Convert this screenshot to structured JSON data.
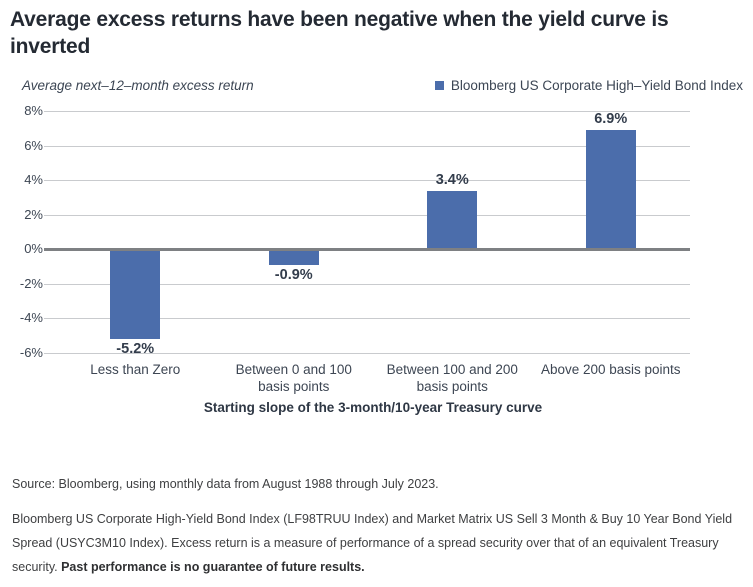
{
  "header": {
    "title": "Average excess returns have been negative when the yield curve is inverted"
  },
  "chart": {
    "axis_note": "Average next–12–month excess return",
    "legend": {
      "label": "Bloomberg US Corporate High–Yield Bond Index",
      "color": "#4b6dab"
    }
  },
  "chart_data": {
    "type": "bar",
    "title": "Average excess returns have been negative when the yield curve is inverted",
    "series_name": "Bloomberg US Corporate High–Yield Bond Index",
    "categories": [
      "Less than Zero",
      "Between 0 and 100\nbasis points",
      "Between 100 and 200\nbasis points",
      "Above 200 basis points"
    ],
    "values": [
      -5.2,
      -0.9,
      3.4,
      6.9
    ],
    "value_labels": [
      "-5.2%",
      "-0.9%",
      "3.4%",
      "6.9%"
    ],
    "xlabel": "Starting slope of the 3-month/10-year Treasury curve",
    "ylabel": "Average next–12–month excess return",
    "ylim": [
      -6,
      8
    ],
    "yticks": [
      8,
      6,
      4,
      2,
      0,
      -2,
      -4,
      -6
    ],
    "ytick_labels": [
      "8%",
      "6%",
      "4%",
      "2%",
      "0%",
      "-2%",
      "-4%",
      "-6%"
    ],
    "grid": true,
    "legend_position": "top-right",
    "bar_color": "#4b6dab",
    "zero_line_color": "#7e8083",
    "gridline_color": "#c9cbce"
  },
  "footer": {
    "source": "Source: Bloomberg, using monthly data from August 1988 through July 2023.",
    "note": "Bloomberg US Corporate High-Yield Bond Index (LF98TRUU Index) and Market Matrix US Sell 3 Month & Buy 10 Year Bond Yield Spread (USYC3M10 Index). Excess return is a measure of performance of a spread security over that of an equivalent Treasury security. ",
    "note_bold": "Past performance is no guarantee of future results."
  }
}
